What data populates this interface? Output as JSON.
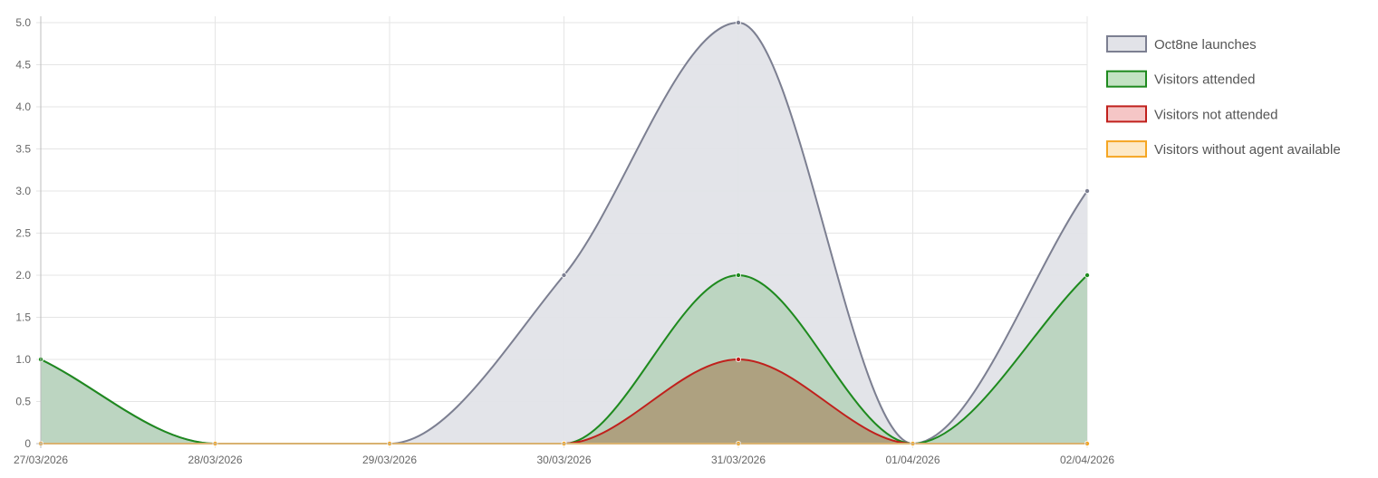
{
  "chart_data": {
    "type": "area",
    "curve": "smooth",
    "categories": [
      "27/03/2026",
      "28/03/2026",
      "29/03/2026",
      "30/03/2026",
      "31/03/2026",
      "01/04/2026",
      "02/04/2026"
    ],
    "y_ticks": [
      "0",
      "0.5",
      "1.0",
      "1.5",
      "2.0",
      "2.5",
      "3.0",
      "3.5",
      "4.0",
      "4.5",
      "5.0"
    ],
    "ylim": [
      0,
      5
    ],
    "grid": true,
    "legend_position": "right",
    "series": [
      {
        "name": "Oct8ne launches",
        "values": [
          1,
          0,
          0,
          2,
          5,
          0,
          3
        ],
        "stroke": "#7c7f91",
        "fill": "#e2e3e8"
      },
      {
        "name": "Visitors attended",
        "values": [
          1,
          0,
          0,
          0,
          2,
          0,
          2
        ],
        "stroke": "#1e8a1e",
        "fill": "#b9d4bf"
      },
      {
        "name": "Visitors not attended",
        "values": [
          0,
          0,
          0,
          0,
          1,
          0,
          0
        ],
        "stroke": "#c0201c",
        "fill": "#ad9e7c"
      },
      {
        "name": "Visitors without agent available",
        "values": [
          0,
          0,
          0,
          0,
          0,
          0,
          0
        ],
        "stroke": "#f5a623",
        "fill": "#fde9c7"
      }
    ],
    "legend": [
      {
        "label": "Oct8ne launches",
        "stroke": "#7c7f91",
        "fill": "#e2e3e8"
      },
      {
        "label": "Visitors attended",
        "stroke": "#1e8a1e",
        "fill": "#c3e3c3"
      },
      {
        "label": "Visitors not attended",
        "stroke": "#c0201c",
        "fill": "#f5c6c6"
      },
      {
        "label": "Visitors without agent available",
        "stroke": "#f5a623",
        "fill": "#fde9c7"
      }
    ],
    "gridColor": "#e5e5e5",
    "axisColor": "#bdbdbd"
  }
}
